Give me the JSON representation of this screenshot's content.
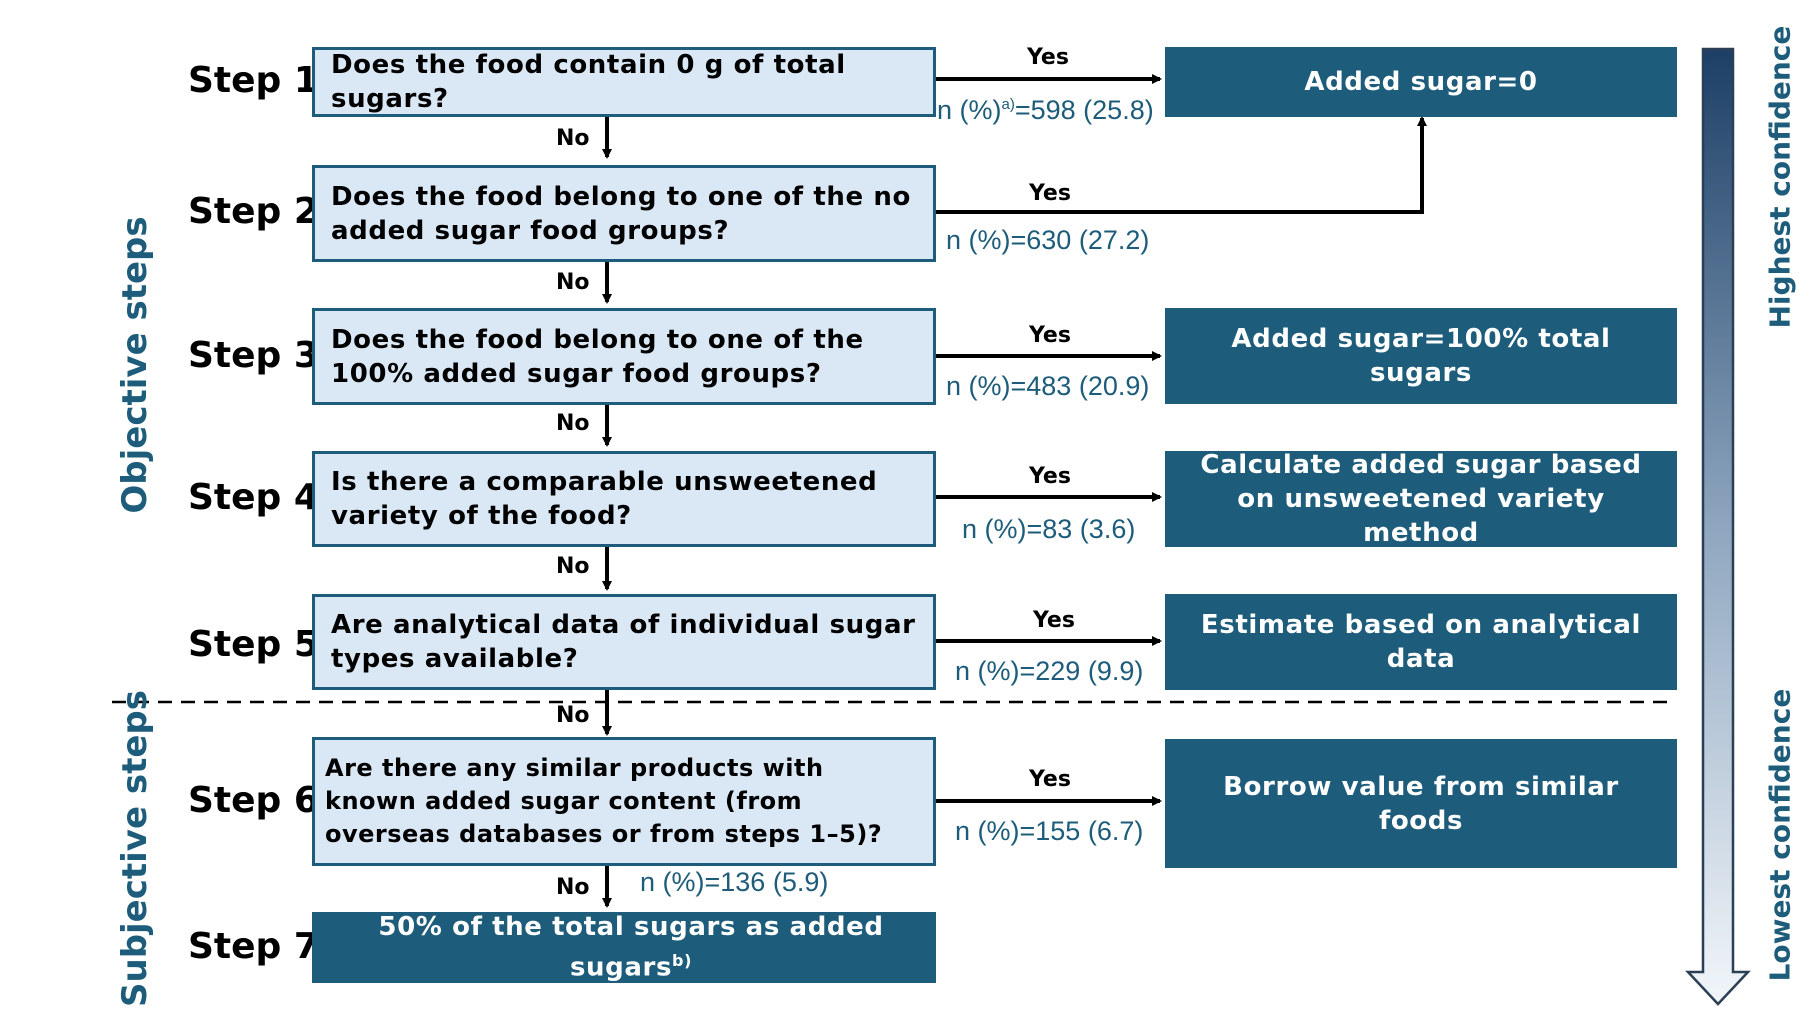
{
  "steps": [
    {
      "label": "Step 1",
      "question": "Does the food contain 0 g of total sugars?",
      "yes": "Yes",
      "count": "n (%)",
      "count_sup": "a)",
      "count_value": "=598 (25.8)",
      "no": "No"
    },
    {
      "label": "Step 2",
      "question": "Does the food belong to one of the no added sugar food groups?",
      "yes": "Yes",
      "count": "n (%)=630 (27.2)",
      "no": "No"
    },
    {
      "label": "Step 3",
      "question": "Does the food belong to one of the 100% added sugar food groups?",
      "yes": "Yes",
      "count": "n (%)=483 (20.9)",
      "no": "No"
    },
    {
      "label": "Step 4",
      "question": "Is there a comparable unsweetened variety of the food?",
      "yes": "Yes",
      "count": "n (%)=83 (3.6)",
      "no": "No"
    },
    {
      "label": "Step 5",
      "question": "Are analytical data of individual sugar types available?",
      "yes": "Yes",
      "count": "n (%)=229 (9.9)",
      "no": "No"
    },
    {
      "label": "Step 6",
      "question": "Are there any similar products with known added sugar content (from overseas databases or from steps 1–5)?",
      "yes": "Yes",
      "count": "n (%)=155 (6.7)",
      "no": "No",
      "no_count": "n (%)=136 (5.9)"
    },
    {
      "label": "Step 7",
      "result": "50% of the total sugars as added sugars",
      "result_sup": "b)"
    }
  ],
  "results": [
    "Added sugar=0",
    "Added sugar=100% total sugars",
    "Calculate added sugar based on unsweetened variety method",
    "Estimate based on analytical data",
    "Borrow value from similar foods"
  ],
  "side_labels": {
    "objective": "Objective steps",
    "subjective": "Subjective steps",
    "highest": "Highest confidence",
    "lowest": "Lowest confidence"
  },
  "colors": {
    "dark_box": "#1d5c7a",
    "light_box": "#dae7f5",
    "arrow_top": "#1d3f66",
    "arrow_bottom": "#f2f6fa"
  }
}
